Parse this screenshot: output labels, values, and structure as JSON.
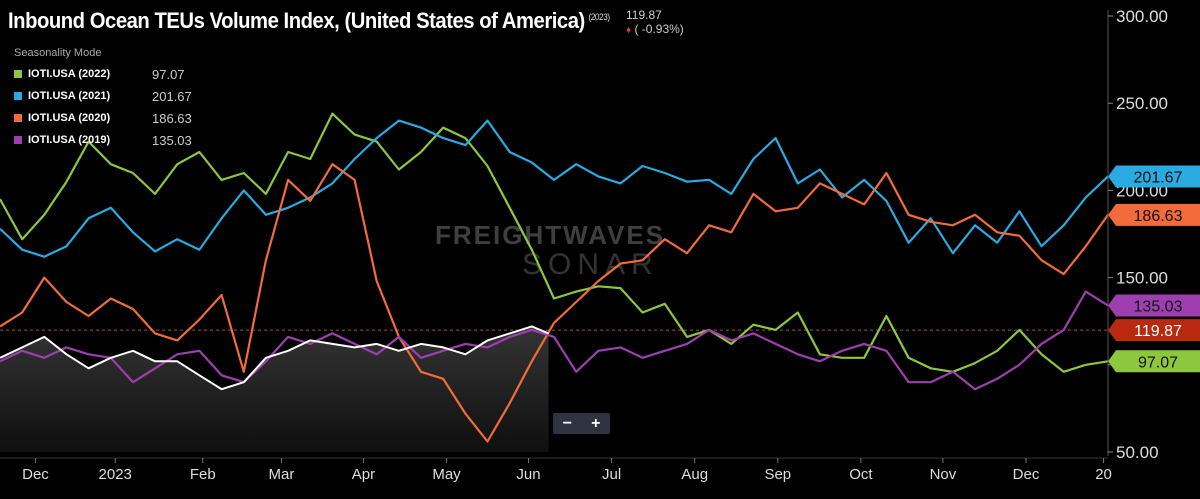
{
  "header": {
    "title": "Inbound Ocean TEUs Volume Index, (United States of America)",
    "title_year": "(2023)",
    "last_value": "119.87",
    "change": "( -0.93%)",
    "change_indicator_icon": "down-dot-icon"
  },
  "legend": {
    "heading": "Seasonality Mode",
    "items": [
      {
        "name": "IOTI.USA (2022)",
        "value": "97.07",
        "color": "#8dc63f"
      },
      {
        "name": "IOTI.USA (2021)",
        "value": "201.67",
        "color": "#29aae1"
      },
      {
        "name": "IOTI.USA (2020)",
        "value": "186.63",
        "color": "#f26b3a"
      },
      {
        "name": "IOTI.USA (2019)",
        "value": "135.03",
        "color": "#9e3fb0"
      }
    ]
  },
  "watermark": {
    "line1": "FREIGHTWAVES",
    "line2": "SONAR"
  },
  "zoom_controls": {
    "minus": "−",
    "plus": "+"
  },
  "chart_data": {
    "type": "line",
    "title": "Inbound Ocean TEUs Volume Index, (United States of America)",
    "ylim": [
      50,
      300
    ],
    "y_ticks": [
      "300.00",
      "250.00",
      "200.00",
      "150.00",
      "100.00",
      "50.00"
    ],
    "x_tick_labels": [
      "Dec",
      "2023",
      "Feb",
      "Mar",
      "Apr",
      "May",
      "Jun",
      "Jul",
      "Aug",
      "Sep",
      "Oct",
      "Nov",
      "Dec",
      "20"
    ],
    "x_range": [
      0,
      100
    ],
    "x_ticks": [
      3.2,
      10.4,
      18.3,
      25.4,
      32.8,
      40.3,
      47.7,
      55.2,
      62.7,
      70.2,
      77.7,
      85.1,
      92.6,
      99.6
    ],
    "current_line": 119.87,
    "series": [
      {
        "name": "IOTI.USA (2022)",
        "color": "#8dc63f",
        "last_label": "97.07",
        "x": [
          0,
          2,
          4,
          6,
          8,
          10,
          12,
          14,
          16,
          18,
          20,
          22,
          24,
          26,
          28,
          30,
          32,
          34,
          36,
          38,
          40,
          42,
          44,
          46,
          48,
          50,
          52,
          54,
          56,
          58,
          60,
          62,
          64,
          66,
          68,
          70,
          72,
          74,
          76,
          78,
          80,
          82,
          84,
          86,
          88,
          90,
          92,
          94,
          96,
          98,
          100
        ],
        "values": [
          195,
          172,
          186,
          205,
          228,
          215,
          210,
          198,
          215,
          222,
          206,
          210,
          198,
          222,
          218,
          244,
          232,
          228,
          212,
          222,
          236,
          230,
          214,
          190,
          166,
          138,
          142,
          145,
          144,
          130,
          135,
          116,
          120,
          112,
          123,
          120,
          130,
          106,
          104,
          104,
          128,
          104,
          98,
          96,
          101,
          108,
          120,
          106,
          96,
          100,
          102
        ]
      },
      {
        "name": "IOTI.USA (2021)",
        "color": "#29aae1",
        "last_label": "201.67",
        "x": [
          0,
          2,
          4,
          6,
          8,
          10,
          12,
          14,
          16,
          18,
          20,
          22,
          24,
          26,
          28,
          30,
          32,
          34,
          36,
          38,
          40,
          42,
          44,
          46,
          48,
          50,
          52,
          54,
          56,
          58,
          60,
          62,
          64,
          66,
          68,
          70,
          72,
          74,
          76,
          78,
          80,
          82,
          84,
          86,
          88,
          90,
          92,
          94,
          96,
          98,
          100
        ],
        "values": [
          178,
          166,
          162,
          168,
          184,
          190,
          176,
          165,
          172,
          166,
          184,
          200,
          186,
          190,
          196,
          204,
          218,
          230,
          240,
          236,
          230,
          226,
          240,
          222,
          216,
          206,
          215,
          208,
          204,
          214,
          210,
          205,
          206,
          198,
          218,
          230,
          204,
          212,
          196,
          206,
          194,
          170,
          184,
          164,
          180,
          170,
          188,
          168,
          180,
          196,
          208
        ]
      },
      {
        "name": "IOTI.USA (2020)",
        "color": "#f26b3a",
        "last_label": "186.63",
        "x": [
          0,
          2,
          4,
          6,
          8,
          10,
          12,
          14,
          16,
          18,
          20,
          22,
          24,
          26,
          28,
          30,
          32,
          34,
          36,
          38,
          40,
          42,
          44,
          46,
          48,
          50,
          52,
          54,
          56,
          58,
          60,
          62,
          64,
          66,
          68,
          70,
          72,
          74,
          76,
          78,
          80,
          82,
          84,
          86,
          88,
          90,
          92,
          94,
          96,
          98,
          100
        ],
        "values": [
          122,
          130,
          150,
          136,
          128,
          138,
          132,
          118,
          114,
          126,
          140,
          96,
          160,
          206,
          194,
          215,
          206,
          148,
          116,
          96,
          92,
          72,
          56,
          78,
          102,
          124,
          136,
          148,
          158,
          160,
          172,
          164,
          180,
          176,
          198,
          188,
          190,
          204,
          198,
          192,
          210,
          186,
          182,
          180,
          186,
          176,
          174,
          160,
          152,
          168,
          186
        ]
      },
      {
        "name": "IOTI.USA (2019)",
        "color": "#9e3fb0",
        "last_label": "135.03",
        "x": [
          0,
          2,
          4,
          6,
          8,
          10,
          12,
          14,
          16,
          18,
          20,
          22,
          24,
          26,
          28,
          30,
          32,
          34,
          36,
          38,
          40,
          42,
          44,
          46,
          48,
          50,
          52,
          54,
          56,
          58,
          60,
          62,
          64,
          66,
          68,
          70,
          72,
          74,
          76,
          78,
          80,
          82,
          84,
          86,
          88,
          90,
          92,
          94,
          96,
          98,
          100
        ],
        "values": [
          102,
          108,
          104,
          110,
          106,
          104,
          90,
          98,
          106,
          108,
          94,
          90,
          102,
          116,
          112,
          118,
          112,
          106,
          116,
          104,
          108,
          112,
          110,
          116,
          120,
          116,
          96,
          108,
          110,
          104,
          108,
          112,
          120,
          114,
          118,
          112,
          106,
          102,
          108,
          112,
          108,
          90,
          90,
          96,
          86,
          92,
          100,
          112,
          120,
          142,
          134
        ]
      },
      {
        "name": "2023",
        "color": "#ffffff",
        "x": [
          0,
          2,
          4,
          6,
          8,
          10,
          12,
          14,
          16,
          18,
          20,
          22,
          24,
          26,
          28,
          30,
          32,
          34,
          36,
          38,
          40,
          42,
          44,
          46,
          48,
          49.5
        ],
        "values": [
          104,
          110,
          116,
          106,
          98,
          104,
          108,
          102,
          102,
          94,
          86,
          90,
          104,
          108,
          114,
          112,
          110,
          112,
          108,
          112,
          110,
          106,
          114,
          118,
          122,
          118
        ]
      }
    ]
  }
}
